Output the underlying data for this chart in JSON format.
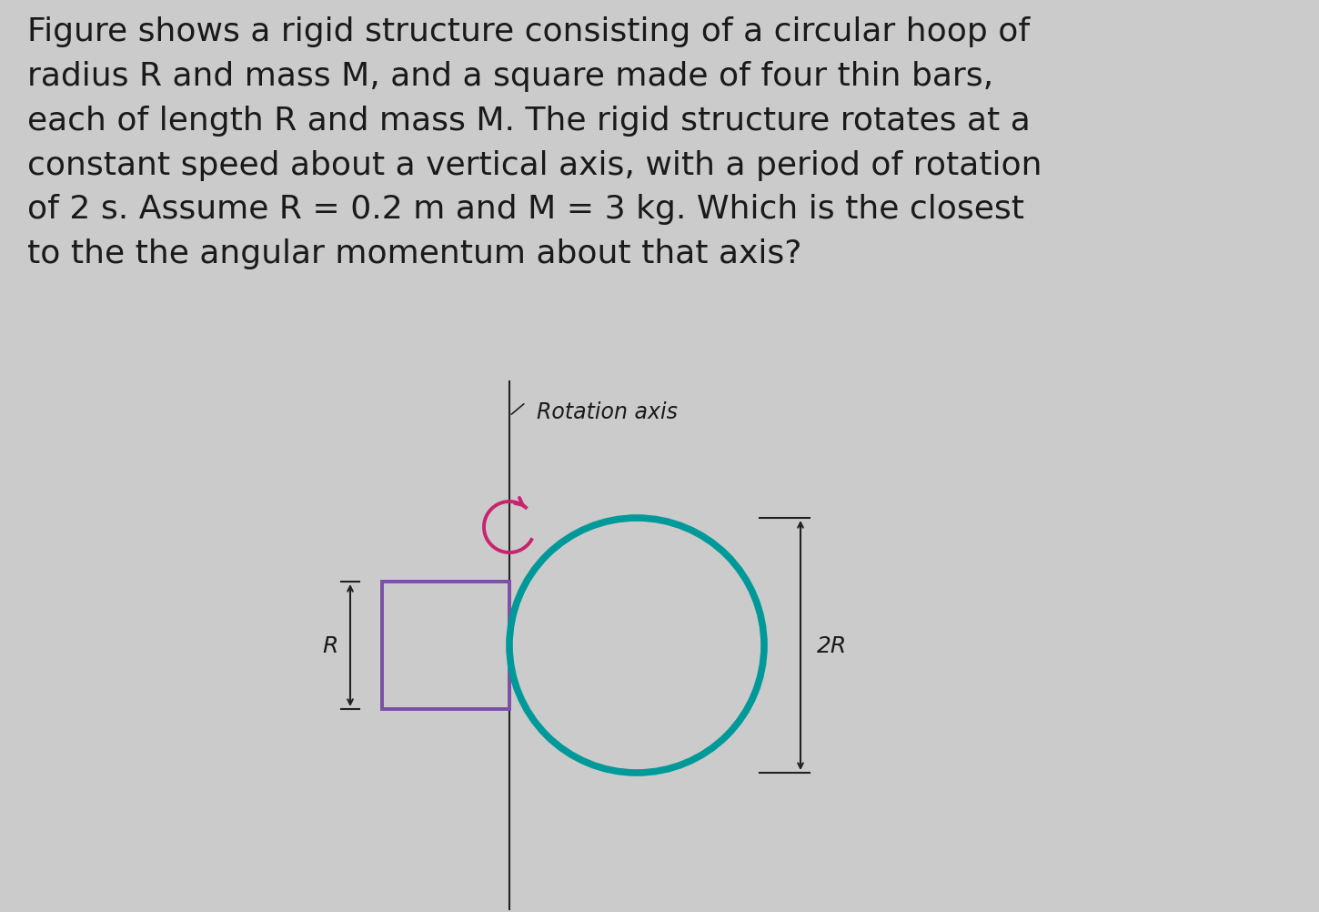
{
  "background_color": "#cbcbcb",
  "text_color": "#1a1a1a",
  "title_text": "Figure shows a rigid structure consisting of a circular hoop of\nradius R and mass M, and a square made of four thin bars,\neach of length R and mass M. The rigid structure rotates at a\nconstant speed about a vertical axis, with a period of rotation\nof 2 s. Assume R = 0.2 m and M = 3 kg. Which is the closest\nto the the angular momentum about that axis?",
  "title_fontsize": 26,
  "rotation_axis_label": "Rotation axis",
  "rotation_axis_label_fontsize": 17,
  "square_color": "#7B4FA6",
  "circle_color": "#009999",
  "axis_line_color": "#222222",
  "arrow_color": "#C8236E",
  "dim_line_color": "#222222",
  "square_lw": 2.8,
  "circle_lw": 5.5,
  "axis_lw": 1.5,
  "dim_lw": 1.5,
  "R_label_fontsize": 18,
  "twoR_label_fontsize": 18,
  "note_fontsize": 17
}
